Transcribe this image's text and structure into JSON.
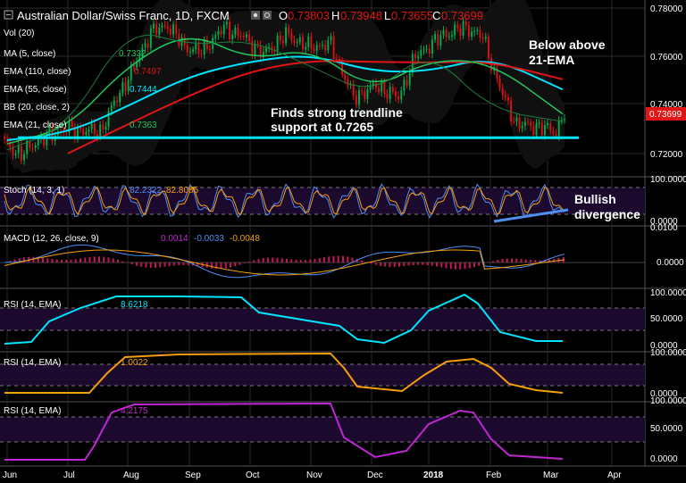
{
  "header": {
    "title": "Australian Dollar/Swiss Franc, 1D, FXCM",
    "o_label": "O",
    "o": "0.73803",
    "h_label": "H",
    "h": "0.73948",
    "l_label": "L",
    "l": "0.73655",
    "c_label": "C",
    "c": "0.73699"
  },
  "colors": {
    "bg": "#000000",
    "up": "#00b050",
    "down": "#e01010",
    "grid": "#2a2a2a",
    "cyan": "#00e5ff",
    "green": "#22c55e",
    "red": "#e01515",
    "blue": "#4f8ff0",
    "orange": "#f59e0b",
    "purple": "#c026d3",
    "indicator_bg": "#1c0a2e"
  },
  "price_panel": {
    "legends": [
      {
        "label": "Vol (20)",
        "value": "",
        "color": "#ffffff"
      },
      {
        "label": "MA (5, close)",
        "value": "0.7332",
        "color": "#22c55e"
      },
      {
        "label": "EMA (110, close)",
        "value": "0.7497",
        "color": "#e01515"
      },
      {
        "label": "EMA (55, close)",
        "value": "0.7444",
        "color": "#00e5ff"
      },
      {
        "label": "BB (20, close, 2)",
        "value": "",
        "color": "#ffffff"
      },
      {
        "label": "EMA (21, close)",
        "value": "0.7363",
        "color": "#22c55e"
      }
    ],
    "annotations": {
      "below_line1": "Below above",
      "below_line2": "21-EMA",
      "trend_line1": "Finds strong trendline",
      "trend_line2": "support at 0.7265"
    },
    "y_ticks": [
      "0.78000",
      "0.76000",
      "0.74000",
      "0.72000"
    ],
    "last_price": "0.73699"
  },
  "stoch_panel": {
    "label": "Stoch (14, 3, 1)",
    "v1": "82.2322",
    "v2": "82.8085",
    "annotation_line1": "Bullish",
    "annotation_line2": "divergence",
    "y_ticks": [
      "100.0000",
      "0.0000"
    ]
  },
  "macd_panel": {
    "label": "MACD (12, 26, close, 9)",
    "v1": "0.0014",
    "v2": "-0.0033",
    "v3": "-0.0048",
    "y_ticks": [
      "0.0100",
      "0.0000"
    ]
  },
  "rsi_panels": [
    {
      "label": "RSI (14, EMA)",
      "value": "8.6218",
      "y_ticks": [
        "100.0000",
        "50.0000",
        "0.0000"
      ]
    },
    {
      "label": "RSI (14, EMA)",
      "value": "1.0022",
      "y_ticks": [
        "100.0000",
        "0.0000"
      ]
    },
    {
      "label": "RSI (14, EMA)",
      "value": "4.2175",
      "y_ticks": [
        "100.0000",
        "50.0000",
        "0.0000"
      ]
    }
  ],
  "x_axis": [
    "Jun",
    "Jul",
    "Aug",
    "Sep",
    "Oct",
    "Nov",
    "Dec",
    "2018",
    "Feb",
    "Mar",
    "Apr"
  ],
  "chart_data": {
    "type": "line",
    "title": "Australian Dollar/Swiss Franc, 1D, FXCM",
    "xlabel": "",
    "ylabel": "",
    "x": [
      "Jun",
      "Jul",
      "Aug",
      "Sep",
      "Oct",
      "Nov",
      "Dec",
      "2018",
      "Feb",
      "Mar"
    ],
    "ylim": [
      0.712,
      0.782
    ],
    "series": [
      {
        "name": "EMA (55, close)",
        "values": [
          0.7255,
          0.7285,
          0.7395,
          0.752,
          0.758,
          0.761,
          0.7538,
          0.7538,
          0.76,
          0.7464
        ]
      },
      {
        "name": "EMA (110, close)",
        "values": [
          null,
          0.72,
          0.732,
          0.744,
          0.754,
          0.7585,
          0.7578,
          0.7575,
          0.758,
          0.7506
        ]
      },
      {
        "name": "EMA (21, close)",
        "values": [
          0.724,
          0.7305,
          0.7565,
          0.7705,
          0.7585,
          0.7635,
          0.746,
          0.7585,
          0.758,
          0.7363
        ]
      },
      {
        "name": "MA (5, close)",
        "values": [
          0.7215,
          0.731,
          0.772,
          0.7645,
          0.767,
          0.756,
          0.744,
          0.763,
          0.738,
          0.7332
        ]
      },
      {
        "name": "Support",
        "values": [
          0.7265,
          0.7265,
          0.7265,
          0.7265,
          0.7265,
          0.7265,
          0.7265,
          0.7265,
          0.7265,
          0.7265
        ]
      }
    ],
    "last_close": 0.73699
  }
}
